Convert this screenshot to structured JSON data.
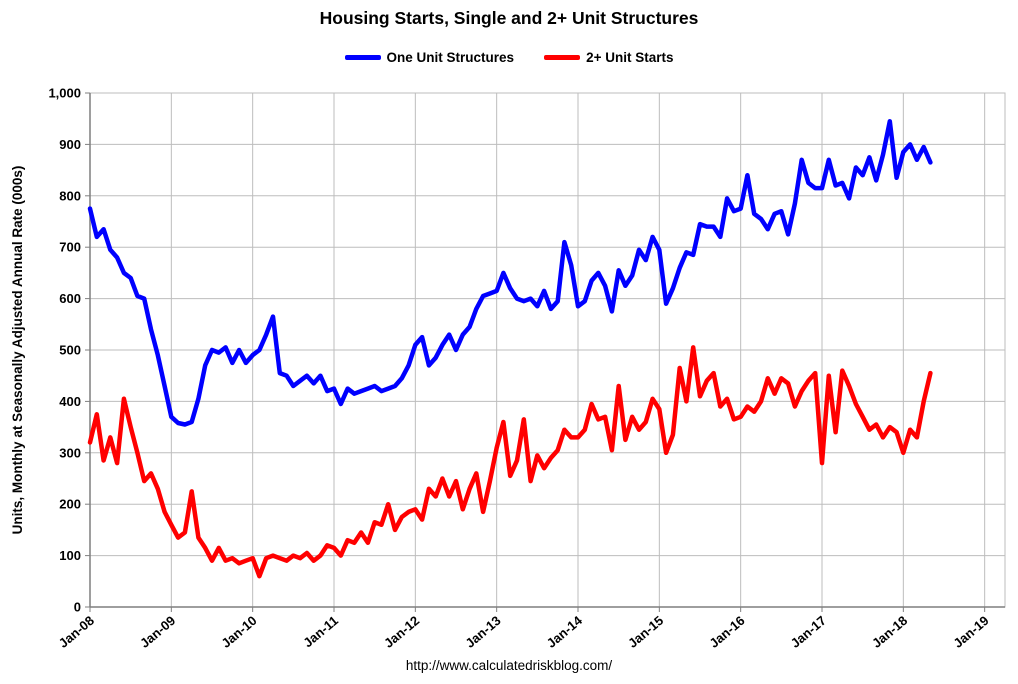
{
  "title": "Housing Starts, Single and 2+ Unit Structures",
  "footer": "http://www.calculatedriskblog.com/",
  "legend": [
    {
      "label": "One Unit Structures",
      "color": "#0000ff"
    },
    {
      "label": "2+ Unit Starts",
      "color": "#ff0000"
    }
  ],
  "chart_data": {
    "type": "line",
    "title": "Housing Starts, Single and 2+ Unit Structures",
    "ylabel": "Units, Monthly at Seasonally Adjusted Annual Rate (000s)",
    "ylim": [
      0,
      1000
    ],
    "ytick_interval": 100,
    "ytick_labels": [
      "0",
      "100",
      "200",
      "300",
      "400",
      "500",
      "600",
      "700",
      "800",
      "900",
      "1,000"
    ],
    "xtick_labels": [
      "Jan-08",
      "Jan-09",
      "Jan-10",
      "Jan-11",
      "Jan-12",
      "Jan-13",
      "Jan-14",
      "Jan-15",
      "Jan-16",
      "Jan-17",
      "Jan-18",
      "Jan-19"
    ],
    "x_axis_months_span": 135,
    "frequency": "monthly",
    "x_start_label": "Jan-08",
    "grid": true,
    "grid_color": "#bdbdbd",
    "axis_color": "#7f7f7f",
    "legend_position": "top",
    "series": [
      {
        "name": "One Unit Structures",
        "color": "#0000ff",
        "values": [
          775,
          720,
          735,
          695,
          680,
          650,
          640,
          605,
          600,
          540,
          490,
          430,
          370,
          358,
          355,
          360,
          405,
          470,
          500,
          495,
          505,
          475,
          500,
          475,
          490,
          500,
          530,
          565,
          455,
          450,
          430,
          440,
          450,
          435,
          450,
          420,
          425,
          395,
          425,
          415,
          420,
          425,
          430,
          420,
          425,
          430,
          445,
          470,
          510,
          525,
          470,
          485,
          510,
          530,
          500,
          530,
          545,
          580,
          605,
          610,
          615,
          650,
          620,
          600,
          595,
          600,
          585,
          615,
          580,
          595,
          710,
          665,
          585,
          595,
          635,
          650,
          625,
          575,
          655,
          625,
          645,
          695,
          675,
          720,
          695,
          590,
          620,
          660,
          690,
          685,
          745,
          740,
          740,
          720,
          795,
          770,
          775,
          840,
          765,
          755,
          735,
          765,
          770,
          725,
          785,
          870,
          825,
          815,
          815,
          870,
          820,
          825,
          795,
          855,
          840,
          875,
          830,
          880,
          945,
          835,
          885,
          900,
          870,
          895,
          865
        ]
      },
      {
        "name": "2+ Unit Starts",
        "color": "#ff0000",
        "values": [
          320,
          375,
          285,
          330,
          280,
          405,
          350,
          300,
          245,
          260,
          230,
          185,
          160,
          135,
          145,
          225,
          135,
          115,
          90,
          115,
          90,
          95,
          85,
          90,
          95,
          60,
          95,
          100,
          95,
          90,
          100,
          95,
          105,
          90,
          100,
          120,
          115,
          100,
          130,
          125,
          145,
          125,
          165,
          160,
          200,
          150,
          175,
          185,
          190,
          170,
          230,
          215,
          250,
          215,
          245,
          190,
          230,
          260,
          185,
          245,
          310,
          360,
          255,
          285,
          365,
          245,
          295,
          270,
          290,
          305,
          345,
          330,
          330,
          345,
          395,
          365,
          370,
          305,
          430,
          325,
          370,
          345,
          360,
          405,
          385,
          300,
          335,
          465,
          400,
          505,
          410,
          440,
          455,
          390,
          405,
          365,
          370,
          390,
          380,
          400,
          445,
          415,
          445,
          435,
          390,
          420,
          440,
          455,
          280,
          450,
          340,
          460,
          430,
          395,
          370,
          345,
          355,
          330,
          350,
          340,
          300,
          345,
          330,
          400,
          455
        ]
      }
    ]
  }
}
